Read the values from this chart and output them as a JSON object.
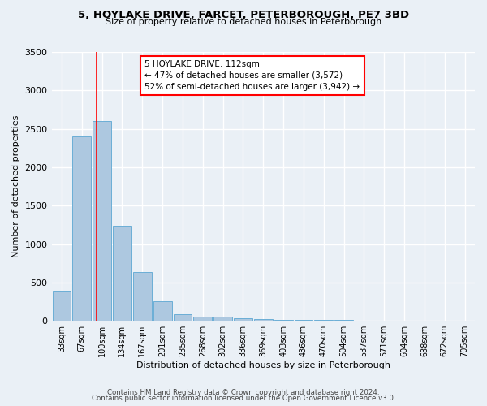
{
  "title_line1": "5, HOYLAKE DRIVE, FARCET, PETERBOROUGH, PE7 3BD",
  "title_line2": "Size of property relative to detached houses in Peterborough",
  "xlabel": "Distribution of detached houses by size in Peterborough",
  "ylabel": "Number of detached properties",
  "footer_line1": "Contains HM Land Registry data © Crown copyright and database right 2024.",
  "footer_line2": "Contains public sector information licensed under the Open Government Licence v3.0.",
  "bar_labels": [
    "33sqm",
    "67sqm",
    "100sqm",
    "134sqm",
    "167sqm",
    "201sqm",
    "235sqm",
    "268sqm",
    "302sqm",
    "336sqm",
    "369sqm",
    "403sqm",
    "436sqm",
    "470sqm",
    "504sqm",
    "537sqm",
    "571sqm",
    "604sqm",
    "638sqm",
    "672sqm",
    "705sqm"
  ],
  "bar_values": [
    390,
    2400,
    2600,
    1240,
    640,
    255,
    90,
    58,
    55,
    35,
    20,
    15,
    12,
    10,
    8,
    6,
    5,
    4,
    3,
    2,
    2
  ],
  "bar_color": "#adc8e0",
  "bar_edge_color": "#6baed6",
  "annotation_text": "5 HOYLAKE DRIVE: 112sqm\n← 47% of detached houses are smaller (3,572)\n52% of semi-detached houses are larger (3,942) →",
  "vline_x": 1.72,
  "vline_color": "red",
  "ylim": [
    0,
    3500
  ],
  "yticks": [
    0,
    500,
    1000,
    1500,
    2000,
    2500,
    3000,
    3500
  ],
  "bg_color": "#eaf0f6",
  "grid_color": "white",
  "annotation_box_color": "white",
  "annotation_box_edge": "red"
}
